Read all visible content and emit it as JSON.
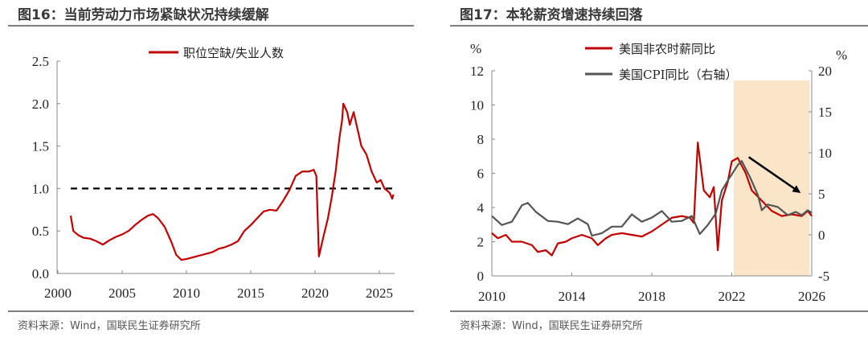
{
  "chart_data": [
    {
      "type": "line",
      "title": "图16：当前劳动力市场紧缺状况持续缓解",
      "source": "资料来源：Wind，国联民生证券研究所",
      "xlim": [
        2000,
        2026.5
      ],
      "ylim": [
        0,
        2.5
      ],
      "xticks": [
        "2000",
        "2005",
        "2010",
        "2015",
        "2020",
        "2025"
      ],
      "yticks": [
        "0.0",
        "0.5",
        "1.0",
        "1.5",
        "2.0",
        "2.5"
      ],
      "legend_position": "top",
      "reference_line": {
        "y": 1.0,
        "style": "dashed",
        "color": "#000000"
      },
      "series": [
        {
          "name": "职位空缺/失业人数",
          "color": "#c00000",
          "x": [
            2001.0,
            2001.2,
            2001.6,
            2002,
            2002.5,
            2003,
            2003.5,
            2004,
            2004.5,
            2005,
            2005.5,
            2006,
            2006.5,
            2007,
            2007.4,
            2007.8,
            2008.3,
            2008.8,
            2009.2,
            2009.6,
            2010,
            2010.5,
            2011,
            2011.5,
            2012,
            2012.5,
            2013,
            2013.5,
            2014,
            2014.5,
            2015,
            2015.5,
            2016,
            2016.5,
            2017,
            2017.5,
            2018,
            2018.5,
            2019,
            2019.5,
            2019.9,
            2020.1,
            2020.3,
            2020.6,
            2021,
            2021.3,
            2021.6,
            2021.9,
            2022.1,
            2022.2,
            2022.5,
            2022.7,
            2023,
            2023.3,
            2023.6,
            2024,
            2024.4,
            2024.8,
            2025.1,
            2025.4,
            2025.8,
            2026,
            2026.1
          ],
          "y": [
            0.68,
            0.5,
            0.45,
            0.42,
            0.41,
            0.38,
            0.34,
            0.39,
            0.43,
            0.46,
            0.5,
            0.57,
            0.63,
            0.68,
            0.7,
            0.65,
            0.55,
            0.38,
            0.22,
            0.16,
            0.17,
            0.19,
            0.21,
            0.23,
            0.25,
            0.29,
            0.31,
            0.34,
            0.38,
            0.5,
            0.57,
            0.65,
            0.73,
            0.75,
            0.74,
            0.85,
            0.98,
            1.15,
            1.2,
            1.2,
            1.22,
            1.15,
            0.2,
            0.4,
            0.65,
            0.9,
            1.2,
            1.6,
            1.8,
            2.0,
            1.9,
            1.75,
            1.9,
            1.7,
            1.5,
            1.4,
            1.2,
            1.07,
            1.1,
            1.0,
            0.95,
            0.88,
            0.93
          ]
        }
      ]
    },
    {
      "type": "line",
      "title": "图17：本轮薪资增速持续回落",
      "source": "资料来源：Wind，国联民生证券研究所",
      "xlim": [
        2010,
        2026
      ],
      "ylim": [
        0,
        12
      ],
      "y2lim": [
        -5,
        20
      ],
      "xticks": [
        "2010",
        "2014",
        "2018",
        "2022",
        "2026"
      ],
      "yticks": [
        "0",
        "2",
        "4",
        "6",
        "8",
        "10",
        "12"
      ],
      "y2ticks": [
        "-5",
        "0",
        "5",
        "10",
        "15",
        "20"
      ],
      "ylabel": "%",
      "y2label": "%",
      "legend_position": "top",
      "shaded_region": {
        "x": [
          2022.1,
          2025.9
        ],
        "color": "#fbe5c8"
      },
      "arrow": {
        "from": [
          2022.85,
          6.95
        ],
        "to": [
          2025.45,
          4.85
        ],
        "color": "#000000"
      },
      "series": [
        {
          "name": "美国非农时薪同比",
          "axis": "left",
          "color": "#c00000",
          "x": [
            2010,
            2010.3,
            2010.7,
            2011,
            2011.5,
            2012,
            2012.3,
            2012.7,
            2013,
            2013.3,
            2013.7,
            2014,
            2014.5,
            2015,
            2015.3,
            2015.7,
            2016,
            2016.5,
            2017,
            2017.5,
            2018,
            2018.5,
            2019,
            2019.5,
            2019.9,
            2020.1,
            2020.3,
            2020.6,
            2020.9,
            2021.1,
            2021.3,
            2021.5,
            2021.8,
            2022,
            2022.3,
            2022.7,
            2023,
            2023.5,
            2024,
            2024.5,
            2025,
            2025.5,
            2025.8,
            2026
          ],
          "y": [
            2.5,
            2.2,
            2.4,
            2.0,
            2.0,
            1.8,
            1.4,
            1.5,
            1.2,
            1.9,
            2.0,
            2.2,
            2.4,
            2.2,
            1.8,
            2.2,
            2.4,
            2.5,
            2.4,
            2.3,
            2.6,
            3.0,
            3.4,
            3.5,
            3.4,
            3.1,
            7.8,
            5.0,
            4.6,
            5.2,
            1.5,
            4.4,
            5.5,
            6.7,
            6.9,
            6.0,
            5.0,
            4.4,
            3.8,
            3.5,
            3.6,
            3.5,
            3.8,
            3.5
          ]
        },
        {
          "name": "美国CPI同比（右轴）",
          "axis": "right",
          "color": "#555555",
          "x": [
            2010,
            2010.5,
            2011,
            2011.5,
            2011.8,
            2012.2,
            2012.8,
            2013.3,
            2013.8,
            2014.3,
            2014.8,
            2015,
            2015.5,
            2016,
            2016.5,
            2017,
            2017.5,
            2018,
            2018.5,
            2019,
            2019.5,
            2020,
            2020.4,
            2020.8,
            2021.2,
            2021.5,
            2021.9,
            2022.3,
            2022.5,
            2022.9,
            2023.3,
            2023.5,
            2023.8,
            2024.3,
            2024.8,
            2025.2,
            2025.5,
            2025.8,
            2026
          ],
          "y": [
            2.3,
            1.2,
            1.6,
            3.6,
            3.9,
            2.8,
            1.7,
            1.6,
            1.3,
            2.0,
            1.3,
            -0.1,
            0.2,
            1.0,
            1.0,
            2.5,
            1.6,
            2.1,
            2.9,
            1.6,
            1.7,
            2.3,
            0.1,
            1.2,
            2.6,
            5.4,
            7.0,
            8.5,
            9.0,
            7.1,
            4.9,
            3.0,
            3.7,
            3.4,
            2.4,
            2.8,
            2.4,
            3.0,
            2.7
          ]
        }
      ]
    }
  ]
}
